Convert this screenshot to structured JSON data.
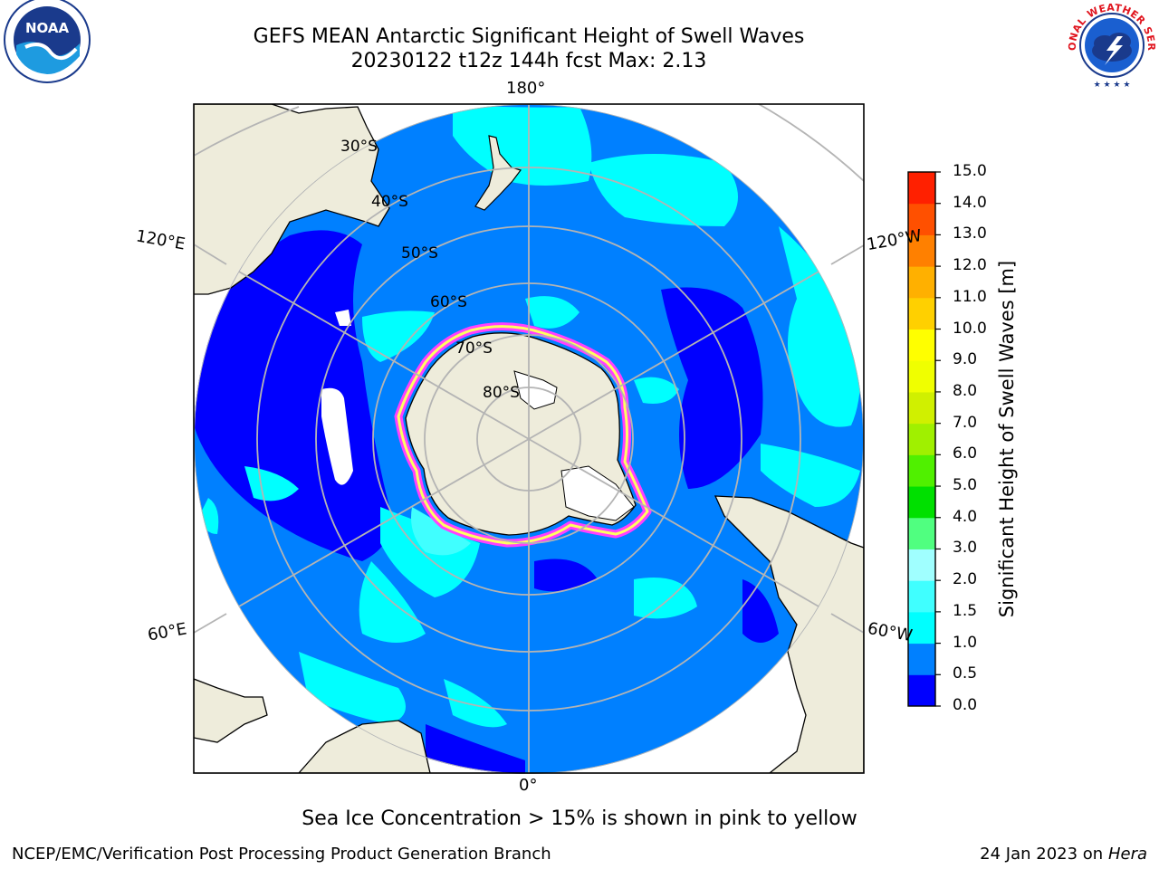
{
  "header": {
    "title_line1": "GEFS MEAN Antarctic Significant Height of Swell Waves",
    "title_line2": "20230122 t12z 144h fcst   Max: 2.13"
  },
  "logos": {
    "noaa": {
      "text": "NOAA",
      "icon": "noaa-logo"
    },
    "nws": {
      "text": "NATIONAL WEATHER SERVICE",
      "icon": "nws-logo"
    }
  },
  "map": {
    "projection": "south-polar-stereographic",
    "longitude_labels": {
      "top": "180°",
      "left_upper": "120°E",
      "right_upper": "120°W",
      "left_lower": "60°E",
      "right_lower": "60°W",
      "bottom": "0°"
    },
    "latitude_labels": [
      "30°S",
      "40°S",
      "50°S",
      "60°S",
      "70°S",
      "80°S"
    ],
    "colors": {
      "land": "#eeecdb",
      "sea_ice_white": "#ffffff",
      "graticule": "#b4b4b4"
    }
  },
  "colorbar": {
    "label": "Significant Height of Swell Waves [m]",
    "ticks": [
      "0.0",
      "0.5",
      "1.0",
      "1.5",
      "2.0",
      "3.0",
      "4.0",
      "5.0",
      "6.0",
      "7.0",
      "8.0",
      "9.0",
      "10.0",
      "11.0",
      "12.0",
      "13.0",
      "14.0",
      "15.0"
    ],
    "colors": [
      "#0000ff",
      "#0080ff",
      "#00ffff",
      "#40ffff",
      "#a0ffff",
      "#50ff80",
      "#00e000",
      "#50f000",
      "#a0f000",
      "#d0f000",
      "#f0ff00",
      "#ffff00",
      "#ffd000",
      "#ffb000",
      "#ff8000",
      "#ff5000",
      "#ff2000"
    ]
  },
  "note": "Sea Ice Concentration > 15% is shown in pink to yellow",
  "footer": {
    "left": "NCEP/EMC/Verification Post Processing Product Generation Branch",
    "right_prefix": "24 Jan 2023 on ",
    "right_italic": "Hera"
  }
}
